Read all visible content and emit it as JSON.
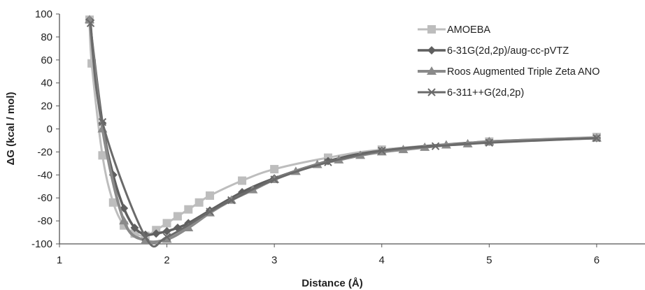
{
  "chart_data": {
    "type": "line",
    "title": "",
    "xlabel": "Distance (Å)",
    "ylabel": "ΔG (kcal / mol)",
    "xlim": [
      1,
      6.45
    ],
    "ylim": [
      -100,
      100
    ],
    "x_ticks": [
      "1",
      "2",
      "3",
      "4",
      "5",
      "6"
    ],
    "y_ticks": [
      "100",
      "80",
      "60",
      "40",
      "20",
      "0",
      "-20",
      "-40",
      "-60",
      "-80",
      "-100"
    ],
    "grid": false,
    "legend_position": "top-right",
    "series": [
      {
        "name": "AMOEBA",
        "color": "#bdbdbd",
        "marker": "square",
        "x": [
          1.28,
          1.3,
          1.4,
          1.5,
          1.6,
          1.7,
          1.8,
          1.9,
          2.0,
          2.1,
          2.2,
          2.3,
          2.4,
          2.7,
          3.0,
          3.5,
          4.0,
          5.0,
          6.0
        ],
        "y": [
          95,
          57,
          -23,
          -64,
          -84,
          -91,
          -93,
          -88,
          -82,
          -76,
          -70,
          -64,
          -58,
          -45,
          -35,
          -25,
          -18,
          -11,
          -7
        ]
      },
      {
        "name": "6-31G(2d,2p)/aug-cc-pVTZ",
        "color": "#5f5f5f",
        "marker": "diamond",
        "x": [
          1.28,
          1.4,
          1.5,
          1.6,
          1.7,
          1.8,
          1.9,
          2.0,
          2.1,
          2.2,
          2.4,
          2.7,
          3.0,
          3.5,
          4.0,
          5.0,
          6.0
        ],
        "y": [
          95,
          5,
          -40,
          -69,
          -86,
          -92,
          -91,
          -89,
          -86,
          -82,
          -71,
          -55,
          -43,
          -28,
          -19,
          -11,
          -8
        ]
      },
      {
        "name": "Roos Augmented Triple Zeta ANO",
        "color": "#8a8a8a",
        "marker": "triangle",
        "x": [
          1.28,
          1.4,
          1.6,
          1.8,
          2.0,
          2.2,
          2.4,
          2.6,
          2.8,
          3.0,
          3.2,
          3.4,
          3.6,
          3.8,
          4.0,
          4.2,
          4.4,
          4.6,
          4.8,
          5.0,
          6.0
        ],
        "y": [
          95,
          0,
          -80,
          -97,
          -96,
          -86,
          -73,
          -62,
          -53,
          -44,
          -37,
          -31,
          -27,
          -23,
          -20,
          -18,
          -16,
          -14,
          -13,
          -11,
          -8
        ]
      },
      {
        "name": "6-311++G(2d,2p)",
        "color": "#6a6a6a",
        "marker": "x",
        "x": [
          1.29,
          1.4,
          1.8,
          2.0,
          2.4,
          2.6,
          3.0,
          3.5,
          4.0,
          4.5,
          5.0,
          6.0
        ],
        "y": [
          92,
          6,
          -94,
          -94,
          -72,
          -62,
          -44,
          -29,
          -19,
          -15,
          -12,
          -8
        ]
      }
    ]
  }
}
